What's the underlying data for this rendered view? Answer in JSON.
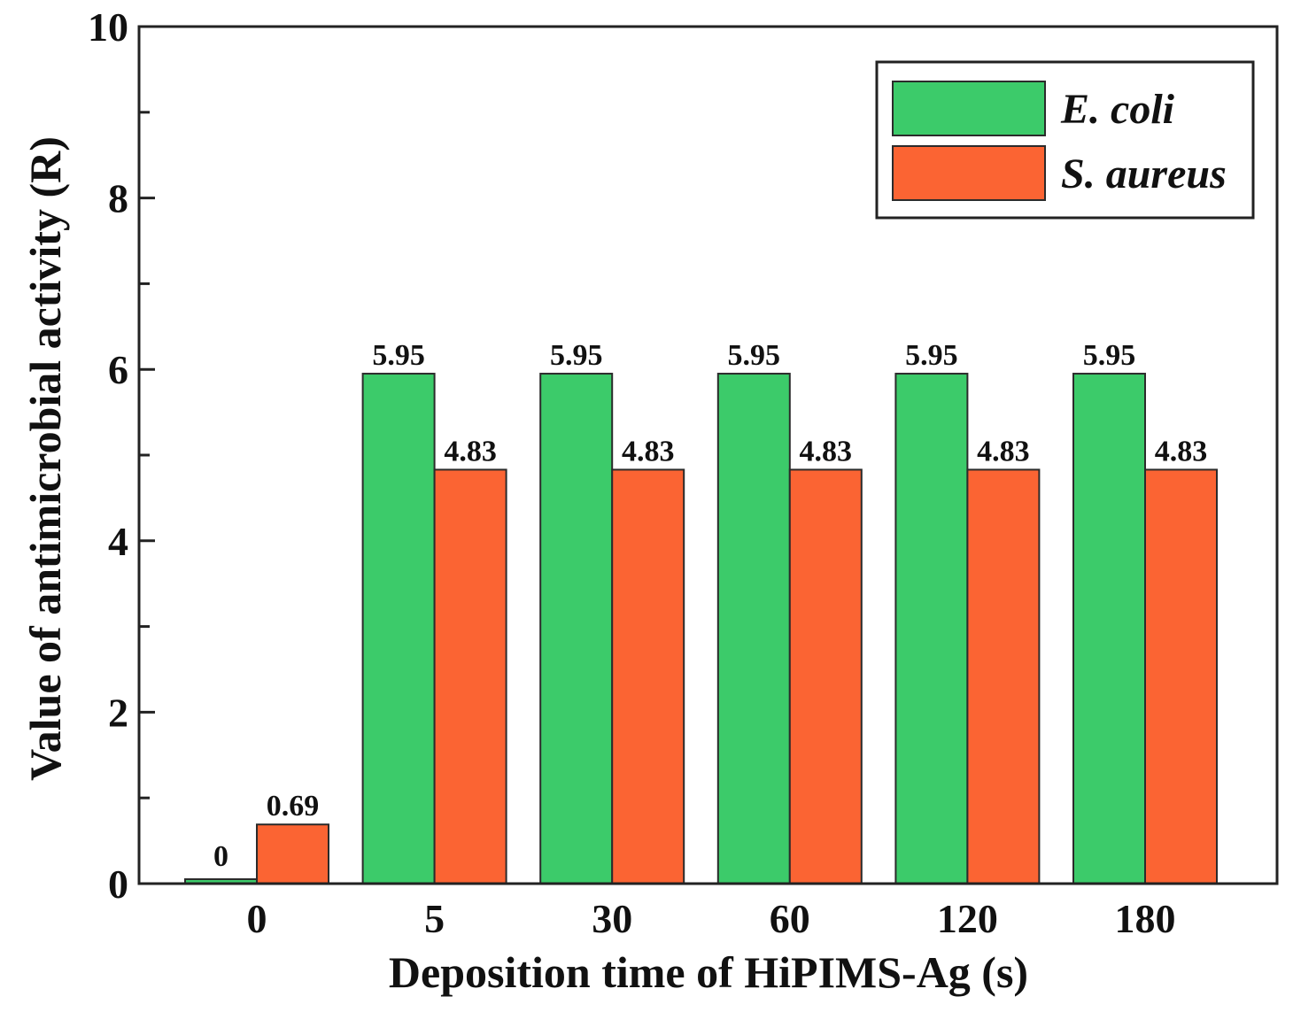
{
  "chart_data": {
    "type": "bar",
    "title": "",
    "xlabel": "Deposition time of HiPIMS-Ag (s)",
    "ylabel": "Value of antimicrobial activity (R)",
    "categories": [
      "0",
      "5",
      "30",
      "60",
      "120",
      "180"
    ],
    "series": [
      {
        "name": "E. coli",
        "color": "#3ccb6a",
        "values": [
          0,
          5.95,
          5.95,
          5.95,
          5.95,
          5.95
        ],
        "labels": [
          "0",
          "5.95",
          "5.95",
          "5.95",
          "5.95",
          "5.95"
        ]
      },
      {
        "name": "S. aureus",
        "color": "#fb6433",
        "values": [
          0.69,
          4.83,
          4.83,
          4.83,
          4.83,
          4.83
        ],
        "labels": [
          "0.69",
          "4.83",
          "4.83",
          "4.83",
          "4.83",
          "4.83"
        ]
      }
    ],
    "ylim": [
      0,
      10
    ],
    "yticks": [
      "0",
      "2",
      "4",
      "6",
      "8",
      "10"
    ],
    "y_minor_step": 1,
    "legend_position": "top-right",
    "grid": false
  }
}
